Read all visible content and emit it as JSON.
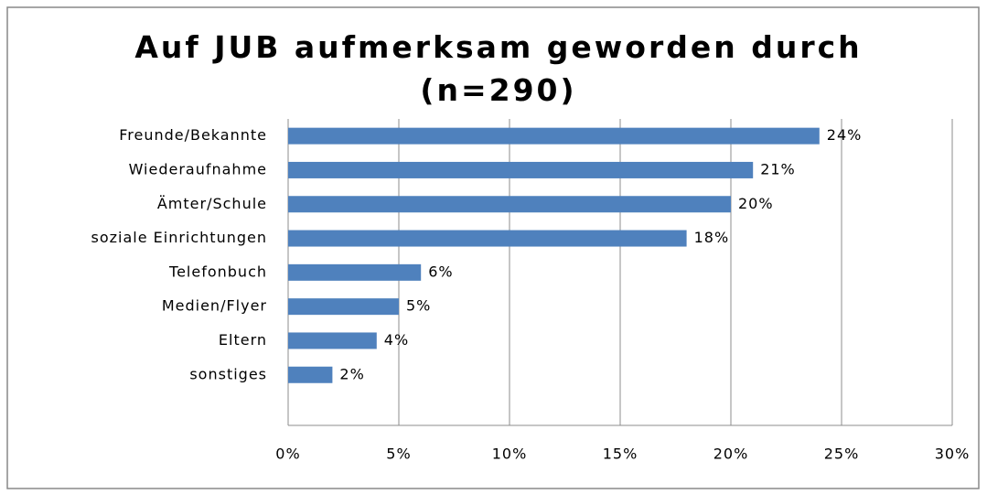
{
  "chart_data": {
    "type": "bar",
    "orientation": "horizontal",
    "title": "Auf JUB aufmerksam geworden durch (n=290)",
    "categories": [
      "Freunde/Bekannte",
      "Wiederaufnahme",
      "Ämter/Schule",
      "soziale Einrichtungen",
      "Telefonbuch",
      "Medien/Flyer",
      "Eltern",
      "sonstiges"
    ],
    "values": [
      24,
      21,
      20,
      18,
      6,
      5,
      4,
      2
    ],
    "value_labels": [
      "24%",
      "21%",
      "20%",
      "18%",
      "6%",
      "5%",
      "4%",
      "2%"
    ],
    "color": "#4f81bd",
    "xlim": [
      0,
      30
    ],
    "xticks": [
      {
        "value": 0,
        "label": "0%"
      },
      {
        "value": 5,
        "label": "5%"
      },
      {
        "value": 10,
        "label": "10%"
      },
      {
        "value": 15,
        "label": "15%"
      },
      {
        "value": 20,
        "label": "20%"
      },
      {
        "value": 25,
        "label": "25%"
      },
      {
        "value": 30,
        "label": "30%"
      }
    ],
    "grid": true
  }
}
